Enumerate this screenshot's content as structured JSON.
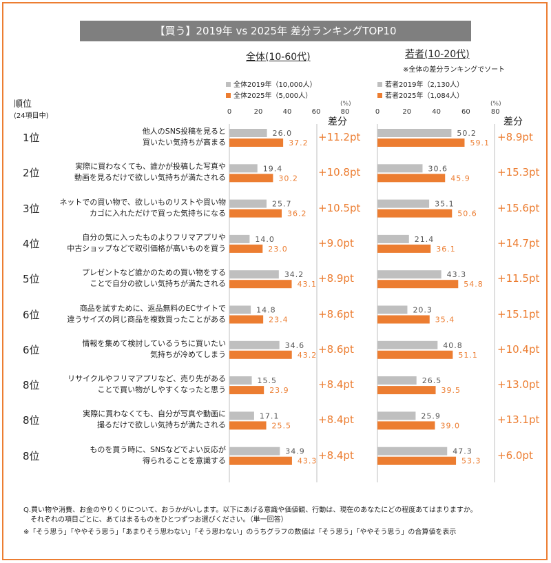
{
  "title": "【買う】2019年 vs 2025年 差分ランキングTOP10",
  "rank_header": {
    "label": "順位",
    "sub": "(24項目中)"
  },
  "diff_header": "差分",
  "pct_unit": "(%)",
  "colors": {
    "accent": "#ec7d31",
    "gray": "#bfbfbf",
    "title_bg": "#7f7f7f"
  },
  "footnotes": [
    "Q.買い物や消費、お金のやりくりについて、おうかがいします。以下にあげる意識や価値観、行動は、現在のあなたにどの程度あてはまりますか。",
    "　それぞれの項目ごとに、あてはまるものをひとつずつお選びください。（単一回答）",
    "※「そう思う」「ややそう思う」「あまりそう思わない」「そう思わない」のうちグラフの数値は「そう思う」「ややそう思う」の合算値を表示"
  ],
  "chart_data": [
    {
      "type": "bar",
      "title": "全体(10-60代)",
      "note": "",
      "xlim": [
        0,
        80
      ],
      "ticks": [
        "0",
        "20",
        "40",
        "60",
        "80"
      ],
      "series": [
        {
          "name": "全体2019年（10,000人）",
          "values": [
            26.0,
            19.4,
            25.7,
            14.0,
            34.2,
            14.8,
            34.6,
            15.5,
            17.1,
            34.9
          ]
        },
        {
          "name": "全体2025年（5,000人）",
          "values": [
            37.2,
            30.2,
            36.2,
            23.0,
            43.1,
            23.4,
            43.2,
            23.9,
            25.5,
            43.3
          ]
        }
      ],
      "diffs": [
        "+11.2pt",
        "+10.8pt",
        "+10.5pt",
        "+9.0pt",
        "+8.9pt",
        "+8.6pt",
        "+8.6pt",
        "+8.4pt",
        "+8.4pt",
        "+8.4pt"
      ]
    },
    {
      "type": "bar",
      "title": "若者(10-20代)",
      "note": "※全体の差分ランキングでソート",
      "xlim": [
        0,
        80
      ],
      "ticks": [
        "0",
        "20",
        "40",
        "60",
        "80"
      ],
      "series": [
        {
          "name": "若者2019年（2,130人）",
          "values": [
            50.2,
            30.6,
            35.1,
            21.4,
            43.3,
            20.3,
            40.8,
            26.5,
            25.9,
            47.3
          ]
        },
        {
          "name": "若者2025年（1,084人）",
          "values": [
            59.1,
            45.9,
            50.6,
            36.1,
            54.8,
            35.4,
            51.1,
            39.5,
            39.0,
            53.3
          ]
        }
      ],
      "diffs": [
        "+8.9pt",
        "+15.3pt",
        "+15.6pt",
        "+14.7pt",
        "+11.5pt",
        "+15.1pt",
        "+10.4pt",
        "+13.0pt",
        "+13.1pt",
        "+6.0pt"
      ]
    }
  ],
  "rows": [
    {
      "rank": "1位",
      "line1": "他人のSNS投稿を見ると",
      "line2": "買いたい気持ちが高まる"
    },
    {
      "rank": "2位",
      "line1": "実際に買わなくても、誰かが投稿した写真や",
      "line2": "動画を見るだけで欲しい気持ちが満たされる"
    },
    {
      "rank": "3位",
      "line1": "ネットでの買い物で、欲しいものリストや買い物",
      "line2": "カゴに入れただけで買った気持ちになる"
    },
    {
      "rank": "4位",
      "line1": "自分の気に入ったものよりフリマアプリや",
      "line2": "中古ショップなどで取引価格が高いものを買う"
    },
    {
      "rank": "5位",
      "line1": "プレゼントなど誰かのための買い物をする",
      "line2": "ことで自分の欲しい気持ちが満たされる"
    },
    {
      "rank": "6位",
      "line1": "商品を試すために、返品無料のECサイトで",
      "line2": "違うサイズの同じ商品を複数買ったことがある"
    },
    {
      "rank": "6位",
      "line1": "情報を集めて検討しているうちに買いたい",
      "line2": "気持ちが冷めてしまう"
    },
    {
      "rank": "8位",
      "line1": "リサイクルやフリマアプリなど、売り先がある",
      "line2": "ことで買い物がしやすくなったと思う"
    },
    {
      "rank": "8位",
      "line1": "実際に買わなくても、自分が写真や動画に",
      "line2": "撮るだけで欲しい気持ちが満たされる"
    },
    {
      "rank": "8位",
      "line1": "ものを買う時に、SNSなどでよい反応が",
      "line2": "得られることを意識する"
    }
  ]
}
